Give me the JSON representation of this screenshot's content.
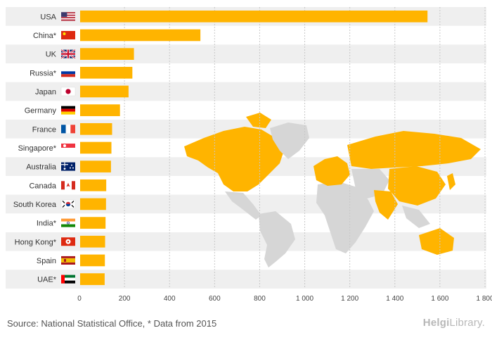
{
  "chart_data": {
    "type": "bar",
    "orientation": "horizontal",
    "categories": [
      "USA",
      "China*",
      "UK",
      "Russia*",
      "Japan",
      "Germany",
      "France",
      "Singapore*",
      "Australia",
      "Canada",
      "South Korea",
      "India*",
      "Hong Kong*",
      "Spain",
      "UAE*"
    ],
    "values": [
      1545,
      537,
      242,
      235,
      218,
      180,
      145,
      142,
      140,
      119,
      118,
      116,
      114,
      113,
      112
    ],
    "xlim": [
      0,
      1800
    ],
    "xticks": [
      0,
      200,
      400,
      600,
      800,
      1000,
      1200,
      1400,
      1600,
      1800
    ],
    "xtick_labels": [
      "0",
      "200",
      "400",
      "600",
      "800",
      "1 000",
      "1 200",
      "1 400",
      "1 600",
      "1 800"
    ],
    "bar_color": "#ffb400",
    "grid": "vertical-dashed"
  },
  "flags": [
    {
      "country": "USA",
      "icon": "us-flag-icon"
    },
    {
      "country": "China*",
      "icon": "china-flag-icon"
    },
    {
      "country": "UK",
      "icon": "uk-flag-icon"
    },
    {
      "country": "Russia*",
      "icon": "russia-flag-icon"
    },
    {
      "country": "Japan",
      "icon": "japan-flag-icon"
    },
    {
      "country": "Germany",
      "icon": "germany-flag-icon"
    },
    {
      "country": "France",
      "icon": "france-flag-icon"
    },
    {
      "country": "Singapore*",
      "icon": "singapore-flag-icon"
    },
    {
      "country": "Australia",
      "icon": "australia-flag-icon"
    },
    {
      "country": "Canada",
      "icon": "canada-flag-icon"
    },
    {
      "country": "South Korea",
      "icon": "south-korea-flag-icon"
    },
    {
      "country": "India*",
      "icon": "india-flag-icon"
    },
    {
      "country": "Hong Kong*",
      "icon": "hong-kong-flag-icon"
    },
    {
      "country": "Spain",
      "icon": "spain-flag-icon"
    },
    {
      "country": "UAE*",
      "icon": "uae-flag-icon"
    }
  ],
  "background_map": {
    "icon": "world-map-icon",
    "highlight_color": "#ffb400",
    "base_color": "#d6d6d6"
  },
  "footer": {
    "source": "Source: National Statistical Office, * Data from 2015",
    "logo_bold": "Helgi",
    "logo_light": "Library."
  }
}
